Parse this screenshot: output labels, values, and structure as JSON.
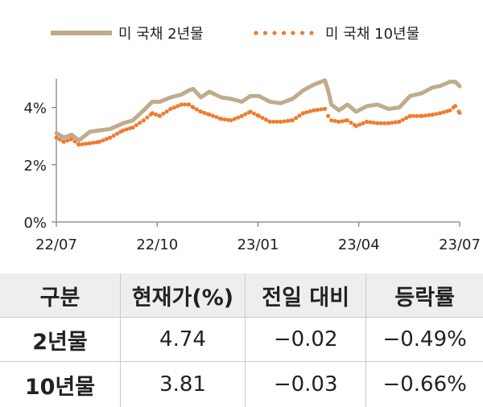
{
  "chart_data": {
    "type": "line",
    "x_ticks": [
      "22/07",
      "22/10",
      "23/01",
      "23/04",
      "23/07"
    ],
    "y_ticks": [
      "0%",
      "2%",
      "4%"
    ],
    "ylim": [
      0,
      5
    ],
    "x_range": [
      "2022-07",
      "2023-07"
    ],
    "grid": false,
    "legend_position": "top",
    "series": [
      {
        "name": "미 국채 2년물",
        "style": "solid",
        "color": "#bfac8b",
        "points": [
          [
            "2022-07-01",
            3.1
          ],
          [
            "2022-07-08",
            2.95
          ],
          [
            "2022-07-15",
            3.05
          ],
          [
            "2022-07-22",
            2.85
          ],
          [
            "2022-08-01",
            3.15
          ],
          [
            "2022-08-10",
            3.2
          ],
          [
            "2022-08-20",
            3.25
          ],
          [
            "2022-09-01",
            3.45
          ],
          [
            "2022-09-10",
            3.55
          ],
          [
            "2022-09-20",
            3.9
          ],
          [
            "2022-09-28",
            4.2
          ],
          [
            "2022-10-05",
            4.2
          ],
          [
            "2022-10-15",
            4.35
          ],
          [
            "2022-10-25",
            4.45
          ],
          [
            "2022-11-01",
            4.6
          ],
          [
            "2022-11-05",
            4.65
          ],
          [
            "2022-11-12",
            4.35
          ],
          [
            "2022-11-20",
            4.55
          ],
          [
            "2022-12-01",
            4.35
          ],
          [
            "2022-12-10",
            4.3
          ],
          [
            "2022-12-20",
            4.2
          ],
          [
            "2022-12-28",
            4.4
          ],
          [
            "2023-01-05",
            4.4
          ],
          [
            "2023-01-15",
            4.2
          ],
          [
            "2023-01-25",
            4.15
          ],
          [
            "2023-02-05",
            4.3
          ],
          [
            "2023-02-15",
            4.6
          ],
          [
            "2023-02-25",
            4.8
          ],
          [
            "2023-03-07",
            4.95
          ],
          [
            "2023-03-10",
            4.6
          ],
          [
            "2023-03-13",
            4.1
          ],
          [
            "2023-03-20",
            3.9
          ],
          [
            "2023-03-28",
            4.1
          ],
          [
            "2023-04-05",
            3.85
          ],
          [
            "2023-04-15",
            4.05
          ],
          [
            "2023-04-25",
            4.1
          ],
          [
            "2023-05-05",
            3.95
          ],
          [
            "2023-05-15",
            4.0
          ],
          [
            "2023-05-25",
            4.4
          ],
          [
            "2023-06-05",
            4.5
          ],
          [
            "2023-06-15",
            4.7
          ],
          [
            "2023-06-22",
            4.75
          ],
          [
            "2023-07-01",
            4.9
          ],
          [
            "2023-07-06",
            4.9
          ],
          [
            "2023-07-10",
            4.74
          ]
        ]
      },
      {
        "name": "미 국채 10년물",
        "style": "dotted",
        "color": "#ed7d31",
        "points": [
          [
            "2022-07-01",
            2.95
          ],
          [
            "2022-07-08",
            2.8
          ],
          [
            "2022-07-15",
            2.9
          ],
          [
            "2022-07-22",
            2.7
          ],
          [
            "2022-08-01",
            2.75
          ],
          [
            "2022-08-10",
            2.8
          ],
          [
            "2022-08-20",
            2.95
          ],
          [
            "2022-09-01",
            3.2
          ],
          [
            "2022-09-10",
            3.3
          ],
          [
            "2022-09-20",
            3.55
          ],
          [
            "2022-09-28",
            3.8
          ],
          [
            "2022-10-05",
            3.7
          ],
          [
            "2022-10-15",
            3.95
          ],
          [
            "2022-10-25",
            4.1
          ],
          [
            "2022-11-01",
            4.1
          ],
          [
            "2022-11-05",
            4.0
          ],
          [
            "2022-11-12",
            3.85
          ],
          [
            "2022-11-20",
            3.75
          ],
          [
            "2022-12-01",
            3.6
          ],
          [
            "2022-12-10",
            3.55
          ],
          [
            "2022-12-20",
            3.7
          ],
          [
            "2022-12-28",
            3.85
          ],
          [
            "2023-01-05",
            3.7
          ],
          [
            "2023-01-15",
            3.5
          ],
          [
            "2023-01-25",
            3.5
          ],
          [
            "2023-02-05",
            3.55
          ],
          [
            "2023-02-15",
            3.8
          ],
          [
            "2023-02-25",
            3.9
          ],
          [
            "2023-03-07",
            3.95
          ],
          [
            "2023-03-10",
            3.7
          ],
          [
            "2023-03-13",
            3.55
          ],
          [
            "2023-03-20",
            3.5
          ],
          [
            "2023-03-28",
            3.55
          ],
          [
            "2023-04-05",
            3.35
          ],
          [
            "2023-04-15",
            3.5
          ],
          [
            "2023-04-25",
            3.45
          ],
          [
            "2023-05-05",
            3.45
          ],
          [
            "2023-05-15",
            3.5
          ],
          [
            "2023-05-25",
            3.7
          ],
          [
            "2023-06-05",
            3.7
          ],
          [
            "2023-06-15",
            3.75
          ],
          [
            "2023-06-22",
            3.8
          ],
          [
            "2023-07-01",
            3.9
          ],
          [
            "2023-07-06",
            4.05
          ],
          [
            "2023-07-10",
            3.81
          ]
        ]
      }
    ]
  },
  "table": {
    "headers": [
      "구분",
      "현재가(%)",
      "전일 대비",
      "등락률"
    ],
    "rows": [
      [
        "2년물",
        "4.74",
        "−0.02",
        "−0.49%"
      ],
      [
        "10년물",
        "3.81",
        "−0.03",
        "−0.66%"
      ]
    ]
  }
}
